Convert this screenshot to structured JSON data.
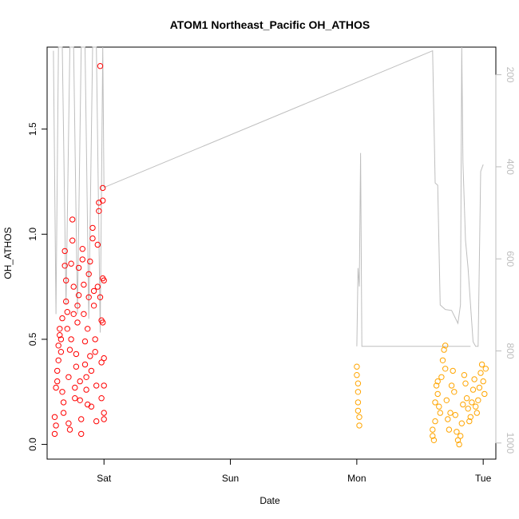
{
  "chart_data": {
    "type": "scatter",
    "title": "ATOM1 Northeast_Pacific OH_ATHOS",
    "xlabel": "Date",
    "ylabel": "OH_ATHOS",
    "x_ticks": [
      "Sat",
      "Sun",
      "Mon",
      "Tue"
    ],
    "y_ticks": [
      "0.0",
      "0.5",
      "1.0",
      "1.5"
    ],
    "y_right_ticks": [
      "200",
      "400",
      "600",
      "800",
      "1000"
    ],
    "xlim_days": [
      -0.45,
      3.1
    ],
    "ylim": [
      -0.07,
      1.89
    ],
    "y_right_lim": [
      1035,
      140
    ],
    "grid": false,
    "colors": {
      "series_early": "#ff0000",
      "series_late": "#ffa500",
      "pressure_line": "#bebebe",
      "axis": "#000000",
      "right_axis": "#bdbdbd"
    },
    "series": [
      {
        "color_key": "series_early",
        "x_range": [
          -0.4,
          0.0
        ],
        "points": [
          [
            -0.39,
            0.05
          ],
          [
            -0.39,
            0.13
          ],
          [
            -0.38,
            0.09
          ],
          [
            -0.38,
            0.27
          ],
          [
            -0.37,
            0.3
          ],
          [
            -0.37,
            0.35
          ],
          [
            -0.36,
            0.4
          ],
          [
            -0.36,
            0.47
          ],
          [
            -0.35,
            0.52
          ],
          [
            -0.35,
            0.55
          ],
          [
            -0.34,
            0.5
          ],
          [
            -0.34,
            0.44
          ],
          [
            -0.33,
            0.6
          ],
          [
            -0.33,
            0.25
          ],
          [
            -0.32,
            0.2
          ],
          [
            -0.32,
            0.15
          ],
          [
            -0.31,
            0.85
          ],
          [
            -0.31,
            0.92
          ],
          [
            -0.3,
            0.68
          ],
          [
            -0.3,
            0.78
          ],
          [
            -0.29,
            0.63
          ],
          [
            -0.29,
            0.55
          ],
          [
            -0.28,
            0.32
          ],
          [
            -0.28,
            0.1
          ],
          [
            -0.27,
            0.07
          ],
          [
            -0.27,
            0.45
          ],
          [
            -0.26,
            0.5
          ],
          [
            -0.26,
            0.86
          ],
          [
            -0.25,
            0.97
          ],
          [
            -0.25,
            1.07
          ],
          [
            -0.24,
            0.75
          ],
          [
            -0.24,
            0.62
          ],
          [
            -0.23,
            0.27
          ],
          [
            -0.23,
            0.22
          ],
          [
            -0.22,
            0.37
          ],
          [
            -0.22,
            0.43
          ],
          [
            -0.21,
            0.58
          ],
          [
            -0.21,
            0.66
          ],
          [
            -0.2,
            0.71
          ],
          [
            -0.2,
            0.84
          ],
          [
            -0.19,
            0.3
          ],
          [
            -0.19,
            0.21
          ],
          [
            -0.18,
            0.12
          ],
          [
            -0.18,
            0.05
          ],
          [
            -0.17,
            0.93
          ],
          [
            -0.17,
            0.88
          ],
          [
            -0.16,
            0.76
          ],
          [
            -0.16,
            0.62
          ],
          [
            -0.15,
            0.49
          ],
          [
            -0.15,
            0.38
          ],
          [
            -0.14,
            0.32
          ],
          [
            -0.14,
            0.26
          ],
          [
            -0.13,
            0.19
          ],
          [
            -0.13,
            0.55
          ],
          [
            -0.12,
            0.7
          ],
          [
            -0.12,
            0.81
          ],
          [
            -0.11,
            0.87
          ],
          [
            -0.11,
            0.42
          ],
          [
            -0.1,
            0.35
          ],
          [
            -0.1,
            0.18
          ],
          [
            -0.09,
            0.98
          ],
          [
            -0.09,
            1.03
          ],
          [
            -0.08,
            0.73
          ],
          [
            -0.08,
            0.66
          ],
          [
            -0.07,
            0.5
          ],
          [
            -0.07,
            0.44
          ],
          [
            -0.06,
            0.28
          ],
          [
            -0.06,
            0.11
          ],
          [
            -0.05,
            0.75
          ],
          [
            -0.05,
            0.95
          ],
          [
            -0.04,
            1.11
          ],
          [
            -0.04,
            1.15
          ],
          [
            -0.03,
            1.8
          ],
          [
            -0.03,
            0.7
          ],
          [
            -0.02,
            0.59
          ],
          [
            -0.02,
            0.39
          ],
          [
            -0.02,
            0.22
          ],
          [
            -0.01,
            1.16
          ],
          [
            -0.01,
            1.22
          ],
          [
            -0.01,
            0.79
          ],
          [
            -0.01,
            0.58
          ],
          [
            0.0,
            0.41
          ],
          [
            0.0,
            0.28
          ],
          [
            0.0,
            0.15
          ],
          [
            0.0,
            0.12
          ],
          [
            0.0,
            0.78
          ]
        ]
      },
      {
        "color_key": "series_late",
        "x_range": [
          0.0,
          3.0
        ],
        "points": [
          [
            2.0,
            0.37
          ],
          [
            2.0,
            0.33
          ],
          [
            2.01,
            0.29
          ],
          [
            2.01,
            0.25
          ],
          [
            2.01,
            0.2
          ],
          [
            2.01,
            0.16
          ],
          [
            2.02,
            0.13
          ],
          [
            2.02,
            0.09
          ],
          [
            2.6,
            0.07
          ],
          [
            2.6,
            0.04
          ],
          [
            2.61,
            0.02
          ],
          [
            2.62,
            0.11
          ],
          [
            2.62,
            0.2
          ],
          [
            2.63,
            0.28
          ],
          [
            2.64,
            0.3
          ],
          [
            2.64,
            0.24
          ],
          [
            2.65,
            0.18
          ],
          [
            2.66,
            0.15
          ],
          [
            2.67,
            0.32
          ],
          [
            2.68,
            0.4
          ],
          [
            2.69,
            0.45
          ],
          [
            2.7,
            0.47
          ],
          [
            2.7,
            0.36
          ],
          [
            2.71,
            0.21
          ],
          [
            2.72,
            0.12
          ],
          [
            2.73,
            0.07
          ],
          [
            2.74,
            0.15
          ],
          [
            2.75,
            0.28
          ],
          [
            2.76,
            0.35
          ],
          [
            2.77,
            0.25
          ],
          [
            2.78,
            0.14
          ],
          [
            2.79,
            0.06
          ],
          [
            2.8,
            0.02
          ],
          [
            2.81,
            0.0
          ],
          [
            2.82,
            0.04
          ],
          [
            2.83,
            0.1
          ],
          [
            2.84,
            0.19
          ],
          [
            2.85,
            0.33
          ],
          [
            2.86,
            0.29
          ],
          [
            2.87,
            0.22
          ],
          [
            2.88,
            0.17
          ],
          [
            2.89,
            0.11
          ],
          [
            2.9,
            0.13
          ],
          [
            2.91,
            0.2
          ],
          [
            2.92,
            0.26
          ],
          [
            2.93,
            0.31
          ],
          [
            2.94,
            0.18
          ],
          [
            2.95,
            0.15
          ],
          [
            2.96,
            0.21
          ],
          [
            2.97,
            0.27
          ],
          [
            2.98,
            0.34
          ],
          [
            2.99,
            0.38
          ],
          [
            3.0,
            0.3
          ],
          [
            3.01,
            0.24
          ],
          [
            3.02,
            0.36
          ]
        ]
      }
    ],
    "pressure_line": {
      "points": [
        [
          -0.4,
          148
        ],
        [
          -0.38,
          720
        ],
        [
          -0.36,
          140
        ],
        [
          -0.33,
          140
        ],
        [
          -0.3,
          700
        ],
        [
          -0.27,
          140
        ],
        [
          -0.24,
          140
        ],
        [
          -0.21,
          720
        ],
        [
          -0.18,
          140
        ],
        [
          -0.15,
          140
        ],
        [
          -0.12,
          730
        ],
        [
          -0.09,
          140
        ],
        [
          -0.06,
          140
        ],
        [
          -0.03,
          760
        ],
        [
          -0.01,
          140
        ],
        [
          0.0,
          445
        ],
        [
          2.6,
          148
        ],
        [
          2.62,
          435
        ],
        [
          2.64,
          440
        ],
        [
          2.66,
          700
        ],
        [
          2.7,
          710
        ],
        [
          2.75,
          712
        ],
        [
          2.8,
          740
        ],
        [
          2.82,
          700
        ],
        [
          2.83,
          140
        ],
        [
          2.84,
          390
        ],
        [
          2.86,
          560
        ],
        [
          2.88,
          620
        ],
        [
          2.9,
          700
        ],
        [
          2.92,
          780
        ],
        [
          2.94,
          790
        ],
        [
          2.96,
          790
        ],
        [
          2.98,
          410
        ],
        [
          3.0,
          395
        ]
      ],
      "mon_spike": [
        [
          2.0,
          790
        ],
        [
          2.01,
          620
        ],
        [
          2.02,
          660
        ],
        [
          2.03,
          370
        ],
        [
          2.04,
          790
        ],
        [
          2.9,
          790
        ]
      ]
    }
  }
}
